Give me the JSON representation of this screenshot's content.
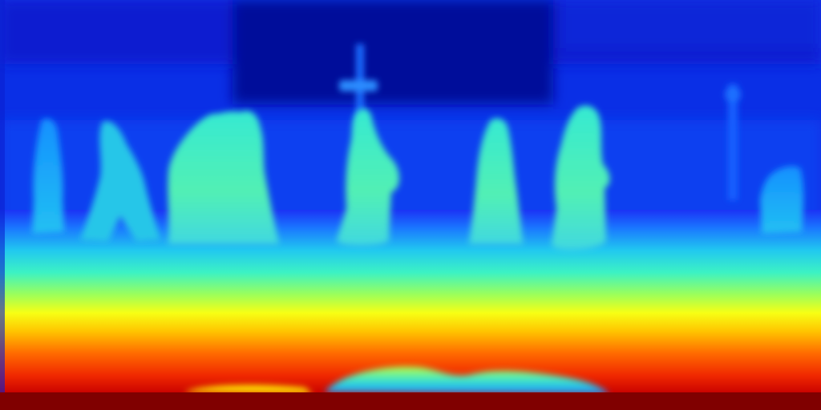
{
  "image": {
    "kind": "depth-map",
    "colormap": "jet",
    "palette": {
      "far": "#00008b",
      "far_mid": "#0a2fe6",
      "mid": "#1a9cff",
      "near_mid": "#3cf2c4",
      "near": "#f7ff14",
      "nearest": "#e01a00",
      "edge": "#800000"
    },
    "subjects": [
      {
        "name": "pedestrian-far-left"
      },
      {
        "name": "pedestrian-left-walking"
      },
      {
        "name": "pedestrian-group-center-left"
      },
      {
        "name": "pedestrian-center"
      },
      {
        "name": "pedestrian-center-right"
      },
      {
        "name": "pedestrian-right"
      },
      {
        "name": "pedestrian-far-right"
      },
      {
        "name": "signpost-center"
      },
      {
        "name": "pole-right"
      }
    ]
  }
}
